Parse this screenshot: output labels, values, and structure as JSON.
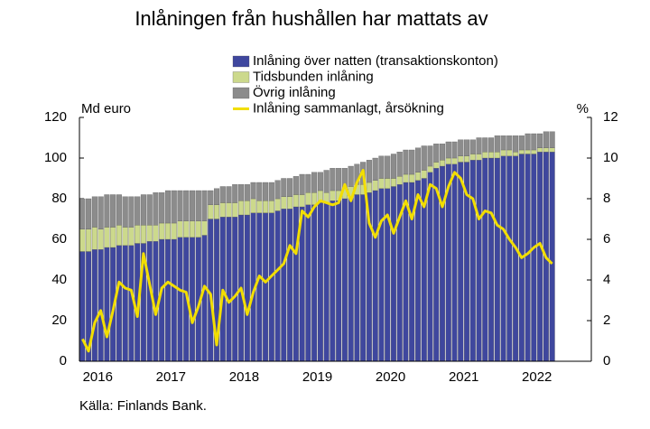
{
  "chart_data": {
    "type": "bar",
    "stacked": true,
    "title": "Inlåningen från hushållen har mattats av",
    "y_label": "Md euro",
    "y2_label": "%",
    "source": "Källa: Finlands Bank.",
    "categories": [
      null,
      null,
      null,
      "2016",
      null,
      null,
      null,
      null,
      null,
      null,
      null,
      null,
      null,
      null,
      null,
      "2017",
      null,
      null,
      null,
      null,
      null,
      null,
      null,
      null,
      null,
      null,
      null,
      "2018",
      null,
      null,
      null,
      null,
      null,
      null,
      null,
      null,
      null,
      null,
      null,
      "2019",
      null,
      null,
      null,
      null,
      null,
      null,
      null,
      null,
      null,
      null,
      null,
      "2020",
      null,
      null,
      null,
      null,
      null,
      null,
      null,
      null,
      null,
      null,
      null,
      "2021",
      null,
      null,
      null,
      null,
      null,
      null,
      null,
      null,
      null,
      null,
      null,
      "2022",
      null,
      null
    ],
    "series": [
      {
        "name": "Inlåning över natten (transaktionskonton)",
        "color": "#3f479e",
        "values": [
          54,
          54,
          55,
          55,
          56,
          56,
          57,
          57,
          57,
          58,
          58,
          59,
          59,
          60,
          60,
          60,
          61,
          61,
          61,
          61,
          62,
          70,
          70,
          71,
          71,
          71,
          72,
          72,
          73,
          73,
          73,
          73,
          74,
          75,
          75,
          76,
          76,
          77,
          77,
          78,
          78,
          79,
          79,
          80,
          81,
          82,
          82,
          83,
          84,
          85,
          85,
          86,
          87,
          88,
          88,
          89,
          90,
          93,
          95,
          96,
          97,
          97,
          98,
          98,
          99,
          99,
          100,
          100,
          100,
          101,
          101,
          101,
          102,
          102,
          102,
          103,
          103,
          103
        ]
      },
      {
        "name": "Tidsbunden inlåning",
        "color": "#ccd98c",
        "values": [
          11,
          11,
          11,
          10,
          10,
          10,
          10,
          9,
          9,
          9,
          9,
          8,
          8,
          8,
          8,
          8,
          8,
          8,
          8,
          8,
          7,
          7,
          7,
          7,
          7,
          7,
          7,
          7,
          7,
          6,
          6,
          6,
          6,
          6,
          6,
          6,
          6,
          6,
          6,
          6,
          5,
          5,
          5,
          5,
          5,
          5,
          5,
          5,
          5,
          5,
          5,
          4,
          4,
          4,
          4,
          4,
          4,
          3,
          3,
          3,
          3,
          3,
          3,
          3,
          3,
          3,
          3,
          3,
          3,
          3,
          3,
          2,
          2,
          2,
          2,
          2,
          2,
          2
        ]
      },
      {
        "name": "Övrig inlåning",
        "color": "#8c8c8c",
        "values": [
          15,
          15,
          15,
          16,
          16,
          16,
          15,
          15,
          15,
          14,
          15,
          15,
          16,
          15,
          16,
          16,
          15,
          15,
          15,
          15,
          15,
          7,
          8,
          8,
          8,
          9,
          8,
          8,
          8,
          9,
          9,
          9,
          9,
          9,
          9,
          9,
          10,
          9,
          10,
          9,
          11,
          11,
          11,
          10,
          10,
          10,
          11,
          11,
          11,
          11,
          11,
          12,
          12,
          12,
          12,
          12,
          12,
          10,
          9,
          8,
          8,
          8,
          8,
          8,
          7,
          8,
          7,
          7,
          8,
          7,
          7,
          8,
          7,
          8,
          8,
          7,
          8,
          8
        ]
      },
      {
        "name": "Inlåning sammanlagt, årsökning",
        "color": "#f2de00",
        "type": "line",
        "axis": "y2",
        "values": [
          1.1,
          0.5,
          1.9,
          2.5,
          1.2,
          2.5,
          3.9,
          3.6,
          3.5,
          2.2,
          5.3,
          3.8,
          2.3,
          3.6,
          3.9,
          3.7,
          3.5,
          3.4,
          1.9,
          2.7,
          3.7,
          3.3,
          0.8,
          3.5,
          2.9,
          3.2,
          3.6,
          2.3,
          3.4,
          4.2,
          3.9,
          4.2,
          4.5,
          4.8,
          5.7,
          5.3,
          7.4,
          7.1,
          7.6,
          7.9,
          7.8,
          7.7,
          7.8,
          8.7,
          7.9,
          8.8,
          9.4,
          6.8,
          6.1,
          6.9,
          7.2,
          6.3,
          7.1,
          7.9,
          7.0,
          8.2,
          7.6,
          8.7,
          8.5,
          7.6,
          8.6,
          9.3,
          9.0,
          8.2,
          8.0,
          7.0,
          7.4,
          7.3,
          6.7,
          6.5,
          6.0,
          5.6,
          5.1,
          5.3,
          5.6,
          5.8,
          5.1,
          4.8
        ]
      }
    ],
    "ylim": [
      0,
      120
    ],
    "yticks": [
      0,
      20,
      40,
      60,
      80,
      100,
      120
    ],
    "y2lim": [
      0,
      12
    ],
    "y2ticks": [
      0,
      2,
      4,
      6,
      8,
      10,
      12
    ],
    "grid": false
  }
}
